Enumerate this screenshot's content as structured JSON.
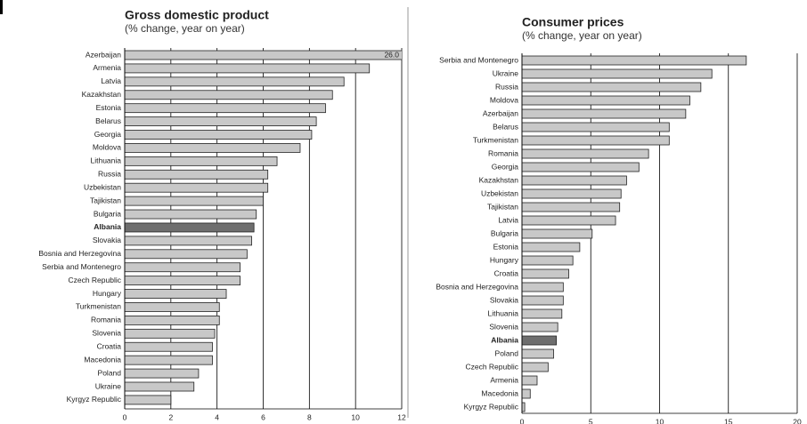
{
  "chart_data": [
    {
      "type": "bar",
      "orientation": "horizontal",
      "title": "Gross domestic product",
      "subtitle": "(% change, year on year)",
      "categories": [
        "Azerbaijan",
        "Armenia",
        "Latvia",
        "Kazakhstan",
        "Estonia",
        "Belarus",
        "Georgia",
        "Moldova",
        "Lithuania",
        "Russia",
        "Uzbekistan",
        "Tajikistan",
        "Bulgaria",
        "Albania",
        "Slovakia",
        "Bosnia and Herzegovina",
        "Serbia and Montenegro",
        "Czech Republic",
        "Hungary",
        "Turkmenistan",
        "Romania",
        "Slovenia",
        "Croatia",
        "Macedonia",
        "Poland",
        "Ukraine",
        "Kyrgyz Republic"
      ],
      "values": [
        26.0,
        10.6,
        9.5,
        9.0,
        8.7,
        8.3,
        8.1,
        7.6,
        6.6,
        6.2,
        6.2,
        6.0,
        5.7,
        5.6,
        5.5,
        5.3,
        5.0,
        5.0,
        4.4,
        4.1,
        4.1,
        3.9,
        3.8,
        3.8,
        3.2,
        3.0,
        2.0
      ],
      "value_labels": [
        "26.0",
        null,
        null,
        null,
        null,
        null,
        null,
        null,
        null,
        null,
        null,
        null,
        null,
        null,
        null,
        null,
        null,
        null,
        null,
        null,
        null,
        null,
        null,
        null,
        null,
        null,
        null
      ],
      "colors": [
        "#c8c8c8",
        "#c8c8c8",
        "#c8c8c8",
        "#c8c8c8",
        "#c8c8c8",
        "#c8c8c8",
        "#c8c8c8",
        "#c8c8c8",
        "#c8c8c8",
        "#c8c8c8",
        "#c8c8c8",
        "#c8c8c8",
        "#c8c8c8",
        "#6e6e6e",
        "#c8c8c8",
        "#c8c8c8",
        "#c8c8c8",
        "#c8c8c8",
        "#c8c8c8",
        "#c8c8c8",
        "#c8c8c8",
        "#c8c8c8",
        "#c8c8c8",
        "#c8c8c8",
        "#c8c8c8",
        "#c8c8c8",
        "#c8c8c8"
      ],
      "xlim": [
        0,
        12
      ],
      "xticks": [
        0,
        2,
        4,
        6,
        8,
        10,
        12
      ],
      "grid": true
    },
    {
      "type": "bar",
      "orientation": "horizontal",
      "title": "Consumer prices",
      "subtitle": "(% change, year on year)",
      "categories": [
        "Serbia and Montenegro",
        "Ukraine",
        "Russia",
        "Moldova",
        "Azerbaijan",
        "Belarus",
        "Turkmenistan",
        "Romania",
        "Georgia",
        "Kazakhstan",
        "Uzbekistan",
        "Tajikistan",
        "Latvia",
        "Bulgaria",
        "Estonia",
        "Hungary",
        "Croatia",
        "Bosnia and Herzegovina",
        "Slovakia",
        "Lithuania",
        "Slovenia",
        "Albania",
        "Poland",
        "Czech Republic",
        "Armenia",
        "Macedonia",
        "Kyrgyz Republic"
      ],
      "values": [
        16.3,
        13.8,
        13.0,
        12.2,
        11.9,
        10.7,
        10.7,
        9.2,
        8.5,
        7.6,
        7.2,
        7.1,
        6.8,
        5.1,
        4.2,
        3.7,
        3.4,
        3.0,
        3.0,
        2.9,
        2.6,
        2.5,
        2.3,
        1.9,
        1.1,
        0.6,
        0.2
      ],
      "colors": [
        "#c8c8c8",
        "#c8c8c8",
        "#c8c8c8",
        "#c8c8c8",
        "#c8c8c8",
        "#c8c8c8",
        "#c8c8c8",
        "#c8c8c8",
        "#c8c8c8",
        "#c8c8c8",
        "#c8c8c8",
        "#c8c8c8",
        "#c8c8c8",
        "#c8c8c8",
        "#c8c8c8",
        "#c8c8c8",
        "#c8c8c8",
        "#c8c8c8",
        "#c8c8c8",
        "#c8c8c8",
        "#c8c8c8",
        "#6e6e6e",
        "#c8c8c8",
        "#c8c8c8",
        "#c8c8c8",
        "#c8c8c8",
        "#c8c8c8"
      ],
      "xlim": [
        0,
        20
      ],
      "xticks": [
        0,
        5,
        10,
        15,
        20
      ],
      "grid": true
    }
  ]
}
